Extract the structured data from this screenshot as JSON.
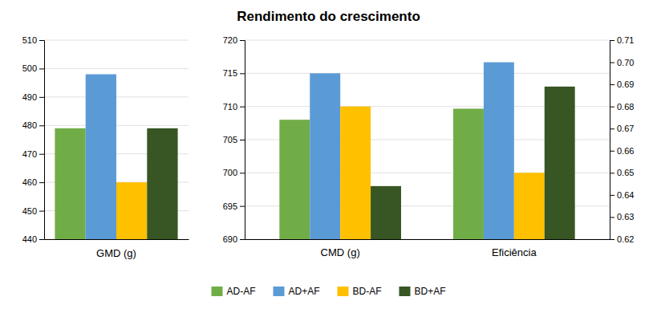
{
  "chart_data": [
    {
      "type": "bar",
      "title": "Rendimento do crescimento",
      "x_label": "GMD (g)",
      "series": [
        {
          "name": "AD-AF",
          "color": "#70AD47",
          "values": [
            479
          ]
        },
        {
          "name": "AD+AF",
          "color": "#5B9BD5",
          "values": [
            498
          ]
        },
        {
          "name": "BD-AF",
          "color": "#FFC000",
          "values": [
            460
          ]
        },
        {
          "name": "BD+AF",
          "color": "#375623",
          "values": [
            479
          ]
        }
      ],
      "ylim": [
        440,
        510
      ],
      "yticks": [
        440,
        450,
        460,
        470,
        480,
        490,
        500,
        510
      ],
      "grid": true,
      "legend": "bottom"
    },
    {
      "type": "bar",
      "categories": [
        "CMD (g)"
      ],
      "series": [
        {
          "name": "AD-AF",
          "color": "#70AD47",
          "values": [
            708
          ]
        },
        {
          "name": "AD+AF",
          "color": "#5B9BD5",
          "values": [
            715
          ]
        },
        {
          "name": "BD-AF",
          "color": "#FFC000",
          "values": [
            710
          ]
        },
        {
          "name": "BD+AF",
          "color": "#375623",
          "values": [
            698
          ]
        }
      ],
      "ylim": [
        690,
        720
      ],
      "yticks": [
        690,
        695,
        700,
        705,
        710,
        715,
        720
      ],
      "grid": true
    },
    {
      "type": "bar",
      "categories": [
        "Eficiência"
      ],
      "series": [
        {
          "name": "AD-AF",
          "color": "#70AD47",
          "values": [
            0.679
          ],
          "axis": "y2"
        },
        {
          "name": "AD+AF",
          "color": "#5B9BD5",
          "values": [
            0.7
          ],
          "axis": "y2"
        },
        {
          "name": "BD-AF",
          "color": "#FFC000",
          "values": [
            0.65
          ],
          "axis": "y2"
        },
        {
          "name": "BD+AF",
          "color": "#375623",
          "values": [
            0.689
          ],
          "axis": "y2"
        }
      ],
      "y2lim": [
        0.62,
        0.71
      ],
      "y2ticks": [
        0.62,
        0.63,
        0.64,
        0.65,
        0.66,
        0.67,
        0.68,
        0.69,
        {
          "value": 0.7,
          "label": "0.70"
        },
        0.71
      ],
      "grid": false
    }
  ]
}
